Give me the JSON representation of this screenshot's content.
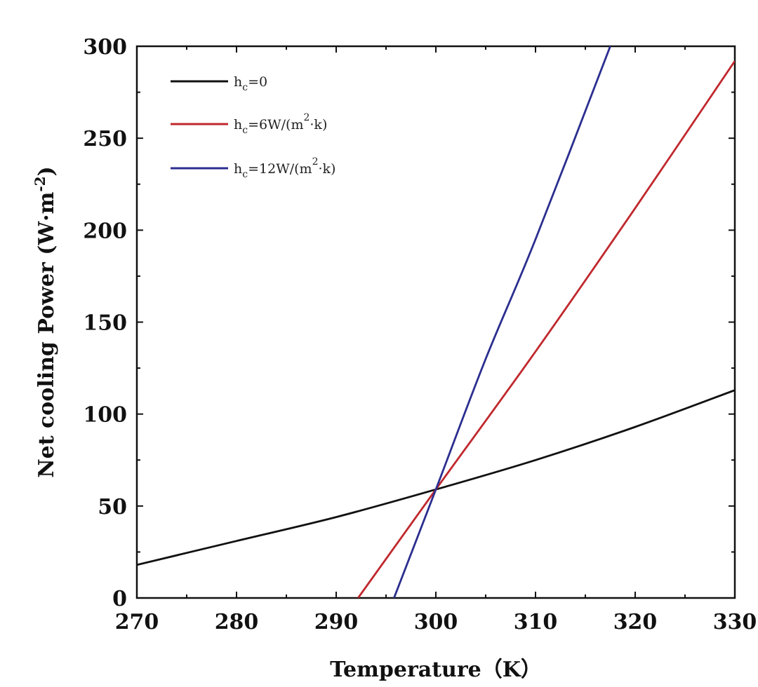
{
  "chart_data": {
    "type": "line",
    "title": "",
    "xlabel": "Temperature（K）",
    "ylabel": "Net cooling Power (W·m",
    "ylabel_sup": "-2",
    "ylabel_close": ")",
    "xlim": [
      270,
      330
    ],
    "ylim": [
      0,
      300
    ],
    "x_ticks": [
      270,
      280,
      290,
      300,
      310,
      320,
      330
    ],
    "y_ticks": [
      0,
      50,
      100,
      150,
      200,
      250,
      300
    ],
    "grid": false,
    "legend_position": "top-left",
    "series": [
      {
        "name": "h_c=0",
        "legend": {
          "base": "h",
          "sub": "c",
          "rest": "=0",
          "sup": "",
          "tail": ""
        },
        "color": "#111111",
        "x": [
          270,
          280,
          290,
          300,
          310,
          320,
          330
        ],
        "y": [
          18,
          31,
          44,
          59,
          75,
          93,
          113
        ]
      },
      {
        "name": "h_c=6W/(m^2·k)",
        "legend": {
          "base": "h",
          "sub": "c",
          "rest": "=6W/(m",
          "sup": "2",
          "tail": "·k)"
        },
        "color": "#c0282d",
        "x": [
          292.2,
          300,
          310,
          320,
          330
        ],
        "y": [
          0,
          59,
          134,
          212,
          292
        ]
      },
      {
        "name": "h_c=12W/(m^2·k)",
        "legend": {
          "base": "h",
          "sub": "c",
          "rest": "=12W/(m",
          "sup": "2",
          "tail": "·k)"
        },
        "color": "#2b2e8f",
        "x": [
          295.8,
          300,
          305,
          310,
          317.5
        ],
        "y": [
          0,
          59,
          130,
          195,
          300
        ]
      }
    ]
  }
}
